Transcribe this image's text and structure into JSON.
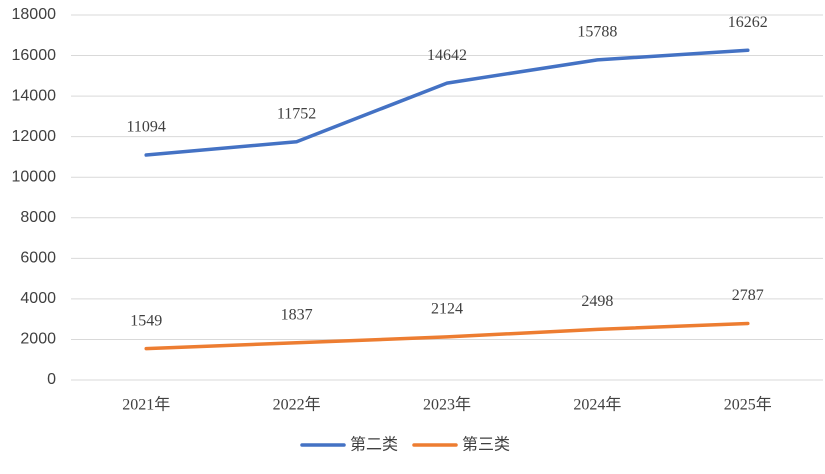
{
  "chart_data": {
    "type": "line",
    "categories": [
      "2021年",
      "2022年",
      "2023年",
      "2024年",
      "2025年"
    ],
    "series": [
      {
        "name": "第二类",
        "color": "#4472c4",
        "values": [
          11094,
          11752,
          14642,
          15788,
          16262
        ]
      },
      {
        "name": "第三类",
        "color": "#ed7d31",
        "values": [
          1549,
          1837,
          2124,
          2498,
          2787
        ]
      }
    ],
    "ylim": [
      0,
      18000
    ],
    "yticks": [
      0,
      2000,
      4000,
      6000,
      8000,
      10000,
      12000,
      14000,
      16000,
      18000
    ],
    "grid": true,
    "legend": "bottom"
  }
}
